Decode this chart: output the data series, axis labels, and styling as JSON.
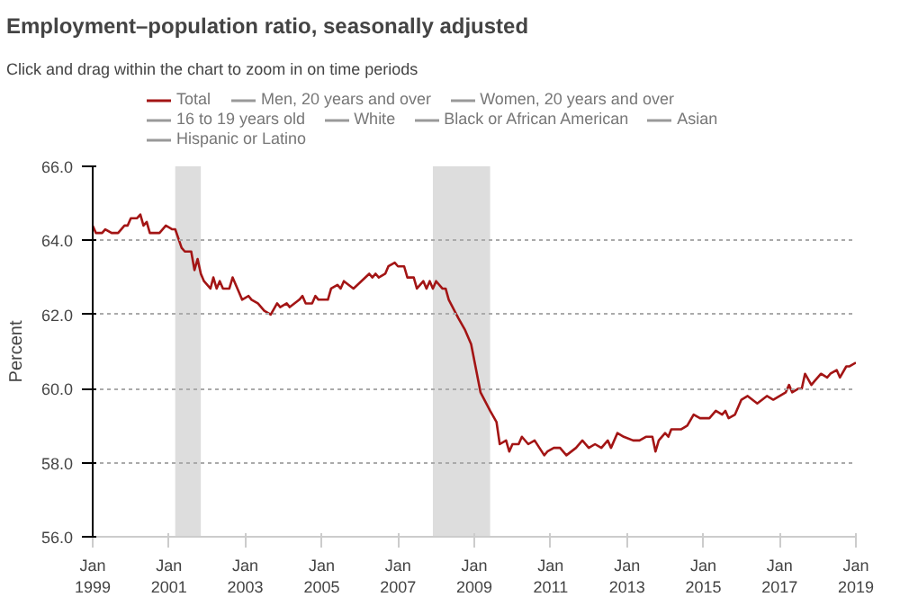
{
  "chart_data": {
    "type": "line",
    "title": "Employment–population ratio, seasonally adjusted",
    "subtitle": "Click and drag within the chart to zoom in on time periods",
    "ylabel": "Percent",
    "xlim": [
      "1999-01",
      "2019-01"
    ],
    "xticks": [
      {
        "value": "1999-01",
        "label": "Jan\n1999"
      },
      {
        "value": "2001-01",
        "label": "Jan\n2001"
      },
      {
        "value": "2003-01",
        "label": "Jan\n2003"
      },
      {
        "value": "2005-01",
        "label": "Jan\n2005"
      },
      {
        "value": "2007-01",
        "label": "Jan\n2007"
      },
      {
        "value": "2009-01",
        "label": "Jan\n2009"
      },
      {
        "value": "2011-01",
        "label": "Jan\n2011"
      },
      {
        "value": "2013-01",
        "label": "Jan\n2013"
      },
      {
        "value": "2015-01",
        "label": "Jan\n2015"
      },
      {
        "value": "2017-01",
        "label": "Jan\n2017"
      },
      {
        "value": "2019-01",
        "label": "Jan\n2019"
      }
    ],
    "ylim": [
      56,
      66
    ],
    "yticks": [
      {
        "value": 56,
        "label": "56.0"
      },
      {
        "value": 58,
        "label": "58.0"
      },
      {
        "value": 60,
        "label": "60.0"
      },
      {
        "value": 62,
        "label": "62.0"
      },
      {
        "value": 64,
        "label": "64.0"
      },
      {
        "value": 66,
        "label": "66.0"
      }
    ],
    "grid": "y",
    "legend": "top",
    "marker": "none",
    "line_style": "solid",
    "bands": [
      {
        "axis": "x",
        "from": "2001-03",
        "to": "2001-11",
        "color": "#dddddd"
      },
      {
        "axis": "x",
        "from": "2007-12",
        "to": "2009-06",
        "color": "#dddddd"
      }
    ],
    "series": [
      {
        "name": "Total",
        "color": "#a31515",
        "x": [
          "1999-01",
          "1999-02",
          "1999-04",
          "1999-05",
          "1999-07",
          "1999-09",
          "1999-10",
          "1999-11",
          "1999-12",
          "2000-01",
          "2000-03",
          "2000-04",
          "2000-05",
          "2000-06",
          "2000-07",
          "2000-10",
          "2000-12",
          "2001-02",
          "2001-03",
          "2001-05",
          "2001-06",
          "2001-08",
          "2001-09",
          "2001-10",
          "2001-11",
          "2001-12",
          "2002-02",
          "2002-03",
          "2002-04",
          "2002-05",
          "2002-06",
          "2002-08",
          "2002-09",
          "2002-11",
          "2002-12",
          "2003-02",
          "2003-03",
          "2003-05",
          "2003-07",
          "2003-09",
          "2003-11",
          "2003-12",
          "2004-02",
          "2004-03",
          "2004-06",
          "2004-07",
          "2004-08",
          "2004-10",
          "2004-11",
          "2004-12",
          "2005-03",
          "2005-04",
          "2005-06",
          "2005-07",
          "2005-08",
          "2005-11",
          "2006-04",
          "2006-05",
          "2006-06",
          "2006-07",
          "2006-09",
          "2006-10",
          "2006-12",
          "2007-01",
          "2007-03",
          "2007-04",
          "2007-06",
          "2007-07",
          "2007-09",
          "2007-10",
          "2007-11",
          "2007-12",
          "2008-01",
          "2008-03",
          "2008-04",
          "2008-05",
          "2008-08",
          "2008-10",
          "2008-12",
          "2009-03",
          "2009-06",
          "2009-08",
          "2009-09",
          "2009-11",
          "2009-12",
          "2010-01",
          "2010-03",
          "2010-04",
          "2010-06",
          "2010-08",
          "2010-11",
          "2010-12",
          "2011-02",
          "2011-04",
          "2011-06",
          "2011-09",
          "2011-11",
          "2012-01",
          "2012-03",
          "2012-05",
          "2012-07",
          "2012-08",
          "2012-10",
          "2012-12",
          "2013-03",
          "2013-05",
          "2013-07",
          "2013-09",
          "2013-10",
          "2013-11",
          "2014-01",
          "2014-02",
          "2014-03",
          "2014-06",
          "2014-08",
          "2014-10",
          "2014-12",
          "2015-03",
          "2015-05",
          "2015-07",
          "2015-08",
          "2015-09",
          "2015-11",
          "2016-01",
          "2016-03",
          "2016-06",
          "2016-09",
          "2016-11",
          "2017-03",
          "2017-04",
          "2017-05",
          "2017-07",
          "2017-08",
          "2017-09",
          "2017-11",
          "2017-12",
          "2018-02",
          "2018-04",
          "2018-05",
          "2018-07",
          "2018-08",
          "2018-10",
          "2018-11",
          "2019-01"
        ],
        "values": [
          64.4,
          64.2,
          64.2,
          64.3,
          64.2,
          64.2,
          64.3,
          64.4,
          64.4,
          64.6,
          64.6,
          64.7,
          64.4,
          64.5,
          64.2,
          64.2,
          64.4,
          64.3,
          64.3,
          63.8,
          63.7,
          63.7,
          63.2,
          63.5,
          63.1,
          62.9,
          62.7,
          63.0,
          62.7,
          62.9,
          62.7,
          62.7,
          63.0,
          62.6,
          62.4,
          62.5,
          62.4,
          62.3,
          62.1,
          62.0,
          62.3,
          62.2,
          62.3,
          62.2,
          62.4,
          62.5,
          62.3,
          62.3,
          62.5,
          62.4,
          62.4,
          62.7,
          62.8,
          62.7,
          62.9,
          62.7,
          63.1,
          63.0,
          63.1,
          63.0,
          63.1,
          63.3,
          63.4,
          63.3,
          63.3,
          63.0,
          63.0,
          62.7,
          62.9,
          62.7,
          62.9,
          62.7,
          62.9,
          62.7,
          62.7,
          62.4,
          61.9,
          61.6,
          61.2,
          59.9,
          59.4,
          59.1,
          58.5,
          58.6,
          58.3,
          58.5,
          58.5,
          58.7,
          58.5,
          58.6,
          58.2,
          58.3,
          58.4,
          58.4,
          58.2,
          58.4,
          58.6,
          58.4,
          58.5,
          58.4,
          58.6,
          58.4,
          58.8,
          58.7,
          58.6,
          58.6,
          58.7,
          58.7,
          58.3,
          58.6,
          58.8,
          58.7,
          58.9,
          58.9,
          59.0,
          59.3,
          59.2,
          59.2,
          59.4,
          59.3,
          59.4,
          59.2,
          59.3,
          59.7,
          59.8,
          59.6,
          59.8,
          59.7,
          59.9,
          60.1,
          59.9,
          60.0,
          60.0,
          60.4,
          60.1,
          60.2,
          60.4,
          60.3,
          60.4,
          60.5,
          60.3,
          60.6,
          60.6,
          60.7
        ]
      },
      {
        "name": "Men, 20 years and over",
        "color": "#999999"
      },
      {
        "name": "Women, 20 years and over",
        "color": "#999999"
      },
      {
        "name": "16 to 19 years old",
        "color": "#999999"
      },
      {
        "name": "White",
        "color": "#999999"
      },
      {
        "name": "Black or African American",
        "color": "#999999"
      },
      {
        "name": "Asian",
        "color": "#999999"
      },
      {
        "name": "Hispanic or Latino",
        "color": "#999999"
      }
    ]
  }
}
